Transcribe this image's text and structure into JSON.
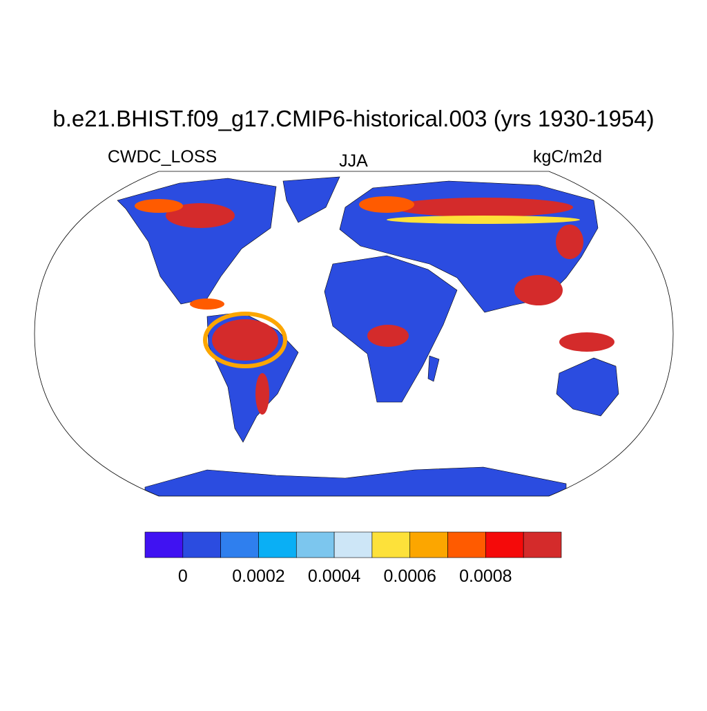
{
  "title": "b.e21.BHIST.f09_g17.CMIP6-historical.003 (yrs 1930-1954)",
  "left_string": "CWDC_LOSS",
  "center_string": "JJA",
  "right_string": "kgC/m2d",
  "colorbar": {
    "colors": [
      "#4012f2",
      "#2b4ce0",
      "#2f7fee",
      "#0aaff5",
      "#7cc6ee",
      "#cde6f7",
      "#fde13a",
      "#fca600",
      "#ff5b00",
      "#f50a0a",
      "#d42b2b"
    ],
    "clim": [
      -0.0001,
      0.001
    ],
    "ticks": [
      0,
      0.0002,
      0.0004,
      0.0006,
      0.0008
    ]
  }
}
